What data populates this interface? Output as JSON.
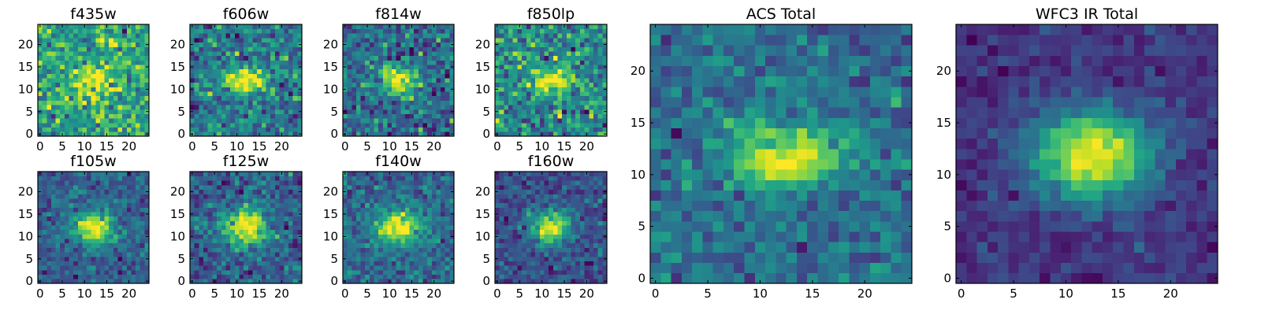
{
  "figure": {
    "colormap": "viridis",
    "colors": {
      "background": "#ffffff",
      "frame": "#000000",
      "cmap_low": "#440154",
      "cmap_high": "#fde725"
    }
  },
  "chart_data": [
    {
      "type": "heatmap",
      "title": "f435w",
      "source_center": [
        11.5,
        12
      ],
      "source_sigma": [
        3.6,
        2.3
      ],
      "base_level": 0.58,
      "peak_level": 0.38,
      "noise": 0.16,
      "seed": 11,
      "xticks": [
        0,
        5,
        10,
        15,
        20
      ],
      "yticks": [
        0,
        5,
        10,
        15,
        20
      ],
      "xlim": [
        -0.5,
        24.5
      ],
      "ylim": [
        -0.5,
        24.5
      ],
      "grid": [
        25,
        25
      ]
    },
    {
      "type": "heatmap",
      "title": "f606w",
      "source_center": [
        12,
        12
      ],
      "source_sigma": [
        3.4,
        1.9
      ],
      "base_level": 0.4,
      "peak_level": 0.58,
      "noise": 0.15,
      "seed": 23,
      "xticks": [
        0,
        5,
        10,
        15,
        20
      ],
      "yticks": [
        0,
        5,
        10,
        15,
        20
      ],
      "xlim": [
        -0.5,
        24.5
      ],
      "ylim": [
        -0.5,
        24.5
      ],
      "grid": [
        25,
        25
      ]
    },
    {
      "type": "heatmap",
      "title": "f814w",
      "source_center": [
        12,
        12
      ],
      "source_sigma": [
        3.4,
        2.0
      ],
      "base_level": 0.36,
      "peak_level": 0.62,
      "noise": 0.15,
      "seed": 37,
      "xticks": [
        0,
        5,
        10,
        15,
        20
      ],
      "yticks": [
        0,
        5,
        10,
        15,
        20
      ],
      "xlim": [
        -0.5,
        24.5
      ],
      "ylim": [
        -0.5,
        24.5
      ],
      "grid": [
        25,
        25
      ]
    },
    {
      "type": "heatmap",
      "title": "f850lp",
      "source_center": [
        12,
        12
      ],
      "source_sigma": [
        3.6,
        2.2
      ],
      "base_level": 0.48,
      "peak_level": 0.5,
      "noise": 0.17,
      "seed": 41,
      "xticks": [
        0,
        5,
        10,
        15,
        20
      ],
      "yticks": [
        0,
        5,
        10,
        15,
        20
      ],
      "xlim": [
        -0.5,
        24.5
      ],
      "ylim": [
        -0.5,
        24.5
      ],
      "grid": [
        25,
        25
      ]
    },
    {
      "type": "heatmap",
      "title": "ACS Total",
      "source_center": [
        12.5,
        11.5
      ],
      "source_sigma": [
        3.8,
        2.1
      ],
      "base_level": 0.36,
      "peak_level": 0.64,
      "noise": 0.1,
      "seed": 53,
      "xticks": [
        0,
        5,
        10,
        15,
        20
      ],
      "yticks": [
        0,
        5,
        10,
        15,
        20
      ],
      "xlim": [
        -0.5,
        24.5
      ],
      "ylim": [
        -0.5,
        24.5
      ],
      "grid": [
        25,
        25
      ]
    },
    {
      "type": "heatmap",
      "title": "f105w",
      "source_center": [
        12,
        12
      ],
      "source_sigma": [
        3.2,
        2.5
      ],
      "base_level": 0.3,
      "peak_level": 0.7,
      "noise": 0.1,
      "seed": 61,
      "xticks": [
        0,
        5,
        10,
        15,
        20
      ],
      "yticks": [
        0,
        5,
        10,
        15,
        20
      ],
      "xlim": [
        -0.5,
        24.5
      ],
      "ylim": [
        -0.5,
        24.5
      ],
      "grid": [
        25,
        25
      ]
    },
    {
      "type": "heatmap",
      "title": "f125w",
      "source_center": [
        12,
        12
      ],
      "source_sigma": [
        3.6,
        2.8
      ],
      "base_level": 0.3,
      "peak_level": 0.7,
      "noise": 0.12,
      "seed": 73,
      "xticks": [
        0,
        5,
        10,
        15,
        20
      ],
      "yticks": [
        0,
        5,
        10,
        15,
        20
      ],
      "xlim": [
        -0.5,
        24.5
      ],
      "ylim": [
        -0.5,
        24.5
      ],
      "grid": [
        25,
        25
      ]
    },
    {
      "type": "heatmap",
      "title": "f140w",
      "source_center": [
        12,
        12
      ],
      "source_sigma": [
        3.6,
        2.6
      ],
      "base_level": 0.34,
      "peak_level": 0.66,
      "noise": 0.11,
      "seed": 83,
      "xticks": [
        0,
        5,
        10,
        15,
        20
      ],
      "yticks": [
        0,
        5,
        10,
        15,
        20
      ],
      "xlim": [
        -0.5,
        24.5
      ],
      "ylim": [
        -0.5,
        24.5
      ],
      "grid": [
        25,
        25
      ]
    },
    {
      "type": "heatmap",
      "title": "f160w",
      "source_center": [
        12,
        12
      ],
      "source_sigma": [
        3.0,
        2.6
      ],
      "base_level": 0.24,
      "peak_level": 0.76,
      "noise": 0.1,
      "seed": 97,
      "xticks": [
        0,
        5,
        10,
        15,
        20
      ],
      "yticks": [
        0,
        5,
        10,
        15,
        20
      ],
      "xlim": [
        -0.5,
        24.5
      ],
      "ylim": [
        -0.5,
        24.5
      ],
      "grid": [
        25,
        25
      ]
    },
    {
      "type": "heatmap",
      "title": "WFC3 IR Total",
      "source_center": [
        12.5,
        12
      ],
      "source_sigma": [
        4.0,
        3.0
      ],
      "base_level": 0.16,
      "peak_level": 0.84,
      "noise": 0.06,
      "seed": 101,
      "xticks": [
        0,
        5,
        10,
        15,
        20
      ],
      "yticks": [
        0,
        5,
        10,
        15,
        20
      ],
      "xlim": [
        -0.5,
        24.5
      ],
      "ylim": [
        -0.5,
        24.5
      ],
      "grid": [
        25,
        25
      ]
    }
  ]
}
